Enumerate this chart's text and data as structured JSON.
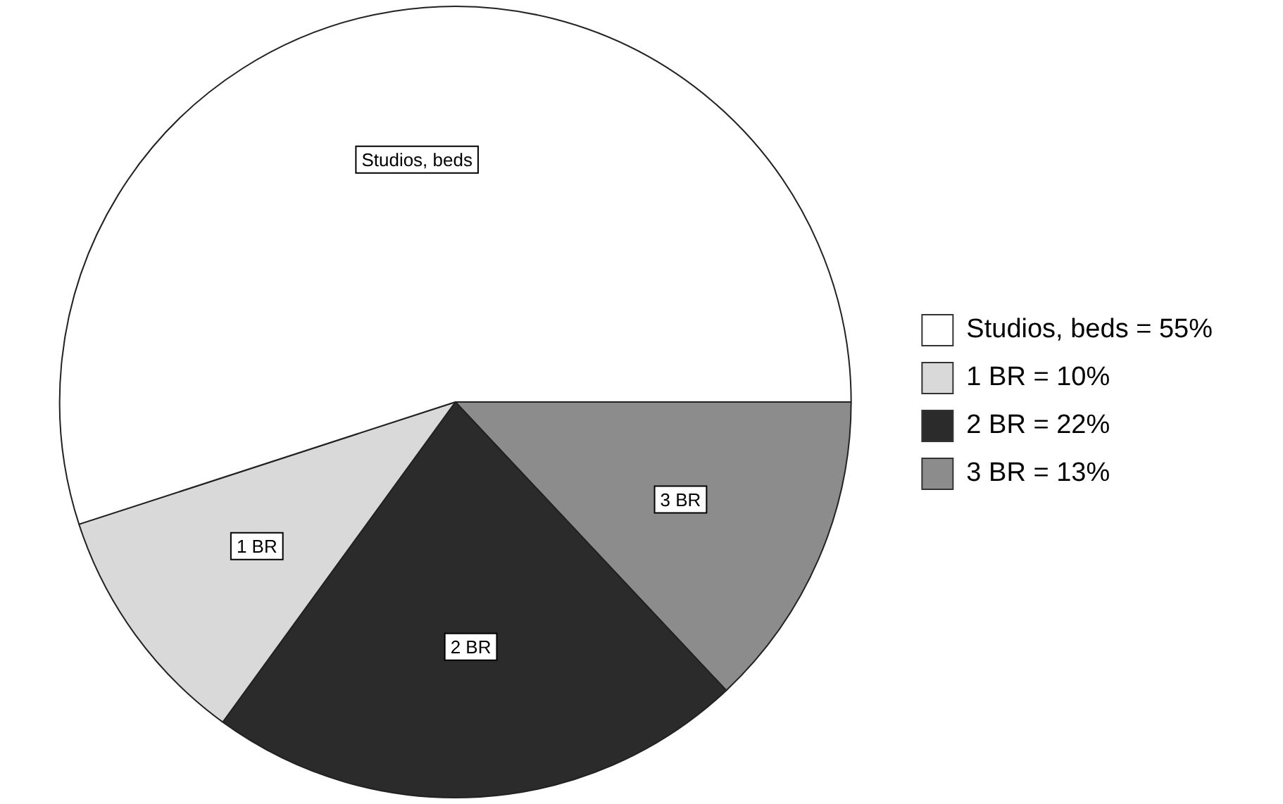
{
  "chart_data": {
    "type": "pie",
    "categories": [
      "Studios, beds = 55%",
      "1 BR = 10%",
      "2 BR = 22%",
      "3 BR = 13%"
    ],
    "values": [
      55,
      10,
      22,
      13
    ],
    "annotations": [
      "Studios, beds",
      "1 BR",
      "2 BR",
      "3 BR"
    ],
    "colors": [
      "#ffffff",
      "#d9d9d9",
      "#2b2b2b",
      "#8c8c8c"
    ],
    "legend": "right"
  }
}
